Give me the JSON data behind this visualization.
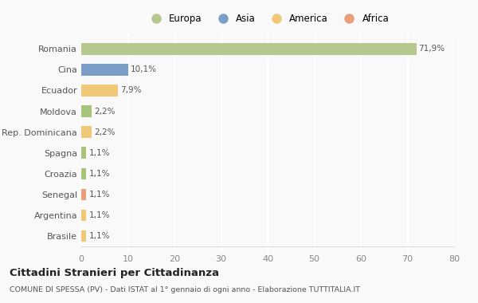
{
  "categories": [
    "Brasile",
    "Argentina",
    "Senegal",
    "Croazia",
    "Spagna",
    "Rep. Dominicana",
    "Moldova",
    "Ecuador",
    "Cina",
    "Romania"
  ],
  "values": [
    1.1,
    1.1,
    1.1,
    1.1,
    1.1,
    2.2,
    2.2,
    7.9,
    10.1,
    71.9
  ],
  "labels": [
    "1,1%",
    "1,1%",
    "1,1%",
    "1,1%",
    "1,1%",
    "2,2%",
    "2,2%",
    "7,9%",
    "10,1%",
    "71,9%"
  ],
  "colors": [
    "#f0c878",
    "#f0c878",
    "#e8a07a",
    "#a8c47a",
    "#a8c47a",
    "#f0c878",
    "#a8c47a",
    "#f0c878",
    "#7b9ec8",
    "#b5c98e"
  ],
  "legend": [
    {
      "label": "Europa",
      "color": "#b5c98e"
    },
    {
      "label": "Asia",
      "color": "#7b9ec8"
    },
    {
      "label": "America",
      "color": "#f0c878"
    },
    {
      "label": "Africa",
      "color": "#e8a07a"
    }
  ],
  "xlim": [
    0,
    80
  ],
  "xticks": [
    0,
    10,
    20,
    30,
    40,
    50,
    60,
    70,
    80
  ],
  "title": "Cittadini Stranieri per Cittadinanza",
  "subtitle": "COMUNE DI SPESSA (PV) - Dati ISTAT al 1° gennaio di ogni anno - Elaborazione TUTTITALIA.IT",
  "background_color": "#f9f9f9",
  "grid_color": "#ffffff",
  "bar_height": 0.55
}
